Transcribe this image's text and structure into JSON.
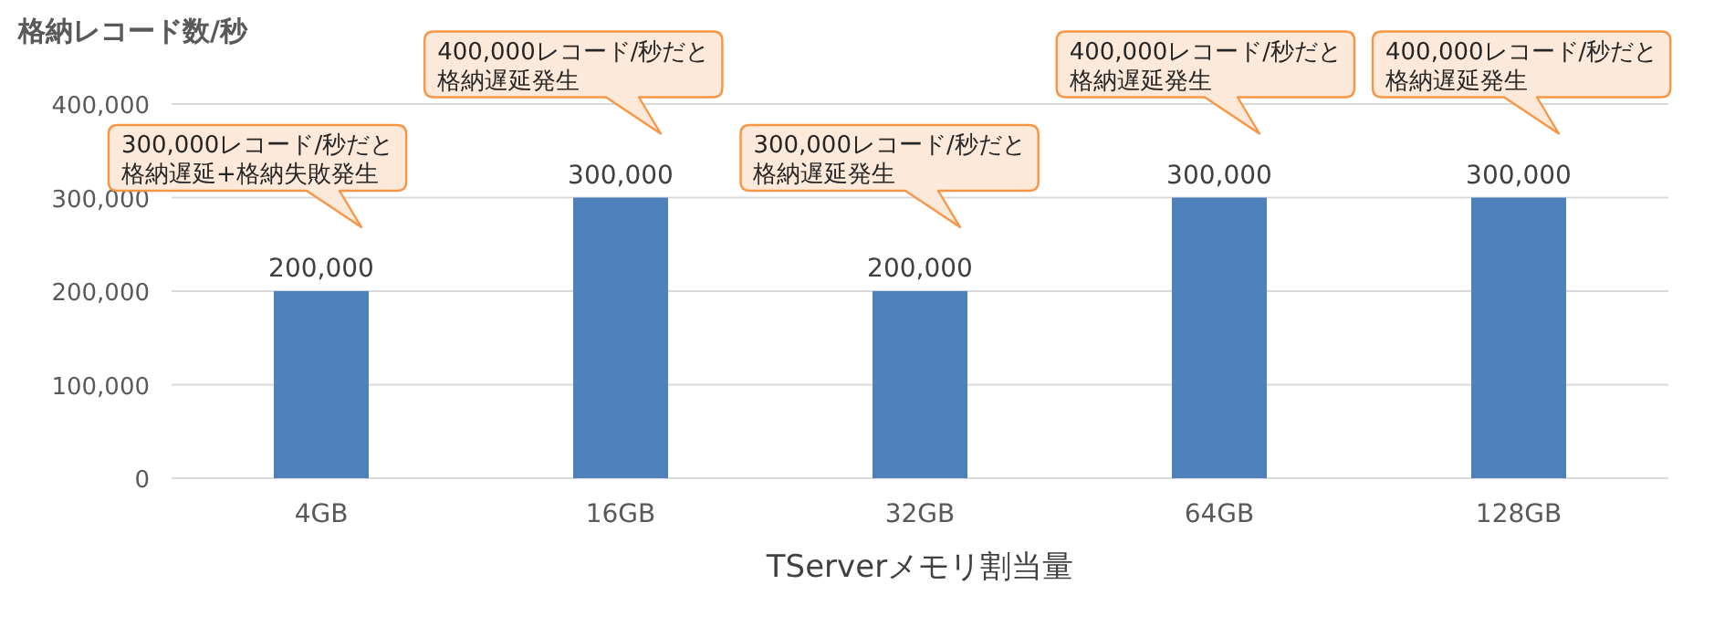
{
  "chart_data": {
    "type": "bar",
    "ylabel": "格納レコード数/秒",
    "xlabel": "TServerメモリ割当量",
    "categories": [
      "4GB",
      "16GB",
      "32GB",
      "64GB",
      "128GB"
    ],
    "values": [
      200000,
      300000,
      200000,
      300000,
      300000
    ],
    "color": "#4f81bd",
    "value_labels": [
      "200,000",
      "300,000",
      "200,000",
      "300,000",
      "300,000"
    ],
    "ylim": [
      0,
      400000
    ],
    "yticks": [
      {
        "value": 0,
        "label": "0"
      },
      {
        "value": 100000,
        "label": "100,000"
      },
      {
        "value": 200000,
        "label": "200,000"
      },
      {
        "value": 300000,
        "label": "300,000"
      },
      {
        "value": 400000,
        "label": "400,000"
      }
    ],
    "grid": "y",
    "annotations": [
      "300,000レコード/秒だと格納遅延+格納失敗発生",
      "400,000レコード/秒だと格納遅延発生",
      "300,000レコード/秒だと格納遅延発生",
      "400,000レコード/秒だと格納遅延発生",
      "400,000レコード/秒だと格納遅延発生"
    ]
  }
}
